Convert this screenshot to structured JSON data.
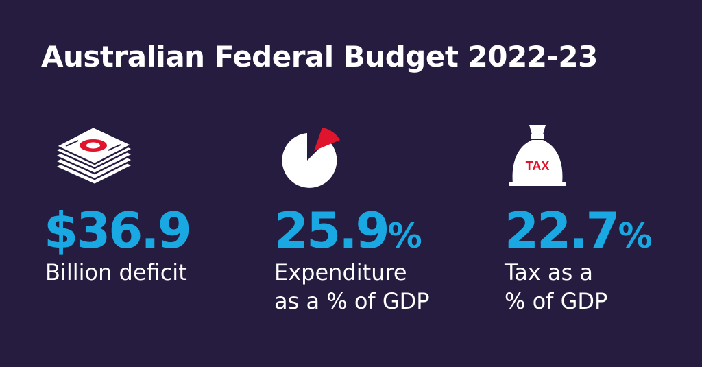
{
  "title": "Australian Federal Budget 2022-23",
  "colors": {
    "background": "#251c40",
    "accent_blue": "#1aa8e2",
    "accent_red": "#e0152d",
    "text": "#ffffff"
  },
  "stats": [
    {
      "icon": "money-stack-icon",
      "value": "$36.9",
      "suffix": "",
      "label_lines": [
        "Billion deficit"
      ]
    },
    {
      "icon": "pie-chart-icon",
      "value": "25.9",
      "suffix": "%",
      "label_lines": [
        "Expenditure",
        "as a % of GDP"
      ]
    },
    {
      "icon": "tax-bag-icon",
      "badge": "TAX",
      "value": "22.7",
      "suffix": "%",
      "label_lines": [
        "Tax as a",
        "% of GDP"
      ]
    }
  ]
}
